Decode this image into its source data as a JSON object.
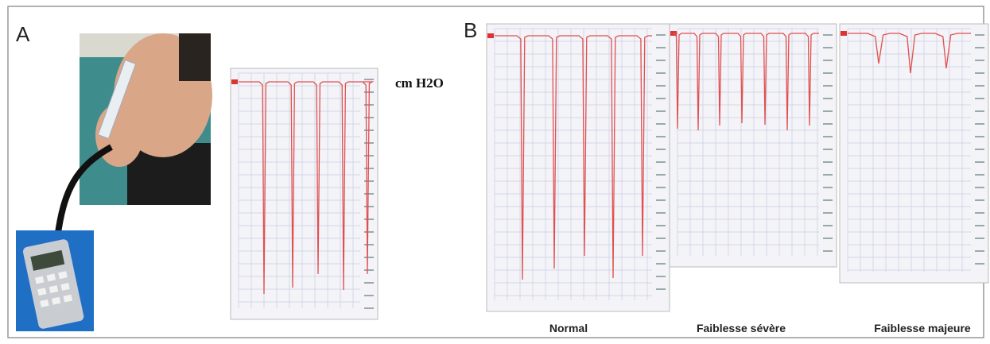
{
  "panel_a": {
    "label": "A",
    "unit": "cm H2O"
  },
  "panel_b": {
    "label": "B",
    "captions": [
      "Normal",
      "Faiblesse sévère",
      "Faiblesse majeure"
    ]
  }
}
